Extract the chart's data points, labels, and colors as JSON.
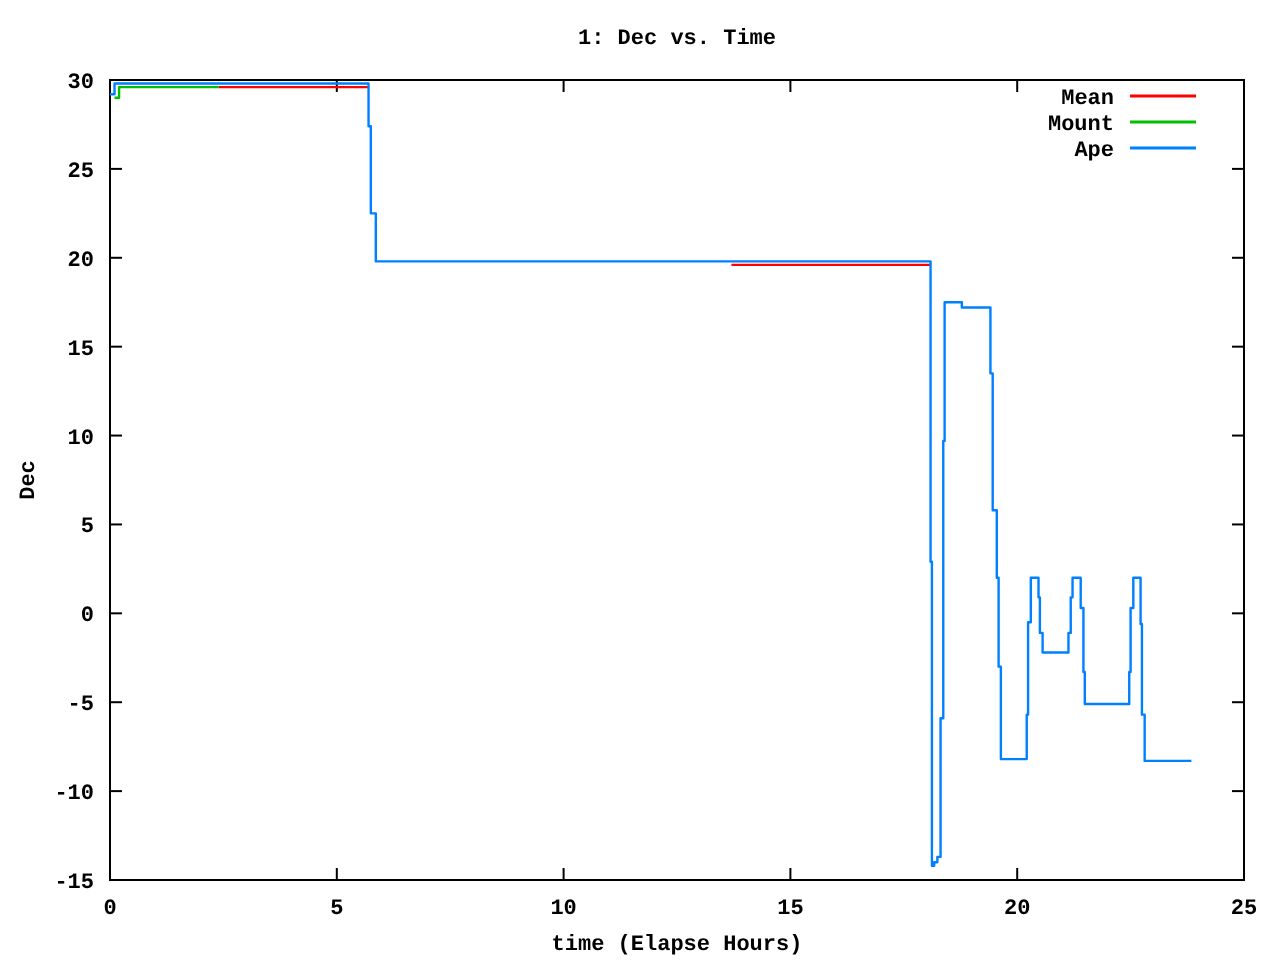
{
  "chart_data": {
    "type": "step",
    "title": "1: Dec vs. Time",
    "xlabel": "time (Elapse Hours)",
    "ylabel": "Dec",
    "xlim": [
      0,
      25
    ],
    "xticks": [
      0,
      5,
      10,
      15,
      20,
      25
    ],
    "ylim": [
      -15,
      30
    ],
    "yticks": [
      -15,
      -10,
      -5,
      0,
      5,
      10,
      15,
      20,
      25,
      30
    ],
    "grid": false,
    "legend": "top right",
    "marker": "none",
    "line_style": "solid",
    "series": [
      {
        "name": "Mean",
        "color": "#ff0000",
        "x": [
          2.4,
          5.7,
          5.71,
          13.7,
          18.09
        ],
        "values": [
          29.6,
          29.6,
          null,
          19.6,
          19.6
        ]
      },
      {
        "name": "Mount",
        "color": "#00c000",
        "x": [
          0.1,
          0.2,
          2.4
        ],
        "values": [
          29.0,
          29.6,
          29.6
        ]
      },
      {
        "name": "Ape",
        "color": "#0080ff",
        "x": [
          0,
          0.1,
          5.7,
          5.75,
          5.86,
          18.09,
          18.12,
          18.17,
          18.24,
          18.31,
          18.37,
          18.4,
          18.78,
          19.41,
          19.46,
          19.55,
          19.59,
          19.64,
          20.21,
          20.24,
          20.3,
          20.47,
          20.5,
          20.56,
          21.13,
          21.18,
          21.22,
          21.4,
          21.46,
          21.49,
          22.47,
          22.5,
          22.56,
          22.72,
          22.75,
          22.81,
          23.84
        ],
        "values": [
          29.2,
          29.8,
          27.4,
          22.5,
          19.8,
          2.9,
          -14.2,
          -14.0,
          -13.7,
          -5.9,
          9.7,
          17.5,
          17.2,
          13.5,
          5.8,
          2.0,
          -3.0,
          -8.2,
          -5.7,
          -0.5,
          2.0,
          0.9,
          -1.1,
          -2.2,
          -1.1,
          0.9,
          2.0,
          0.3,
          -3.3,
          -5.1,
          -3.3,
          0.3,
          2.0,
          -0.6,
          -5.7,
          -8.3,
          -8.3
        ]
      }
    ]
  }
}
